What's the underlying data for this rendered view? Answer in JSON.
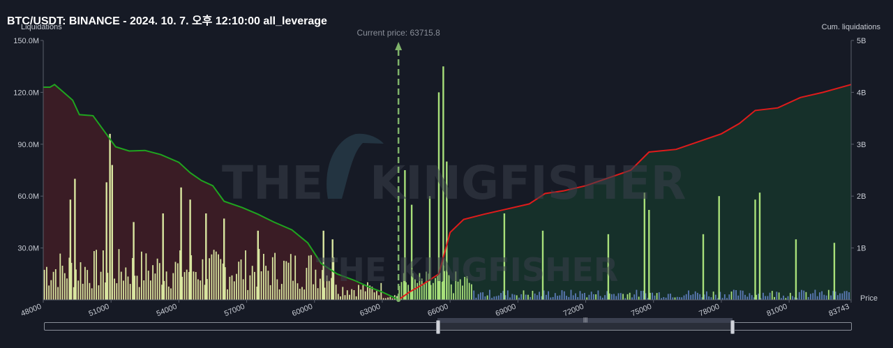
{
  "header": {
    "title": "BTC/USDT: BINANCE - 2024. 10. 7. 오후 12:10:00 all_leverage"
  },
  "chart_data": {
    "type": "bar",
    "title": "BTC/USDT: BINANCE - 2024. 10. 7. 오후 12:10:00 all_leverage",
    "ylabel": "Liquidations",
    "y2label": "Cum. liquidations",
    "xlabel": "Price",
    "xlim": [
      48000,
      83743
    ],
    "ylim": [
      0,
      150000000
    ],
    "y2lim": [
      0,
      5000000000
    ],
    "x_ticks": [
      "48000",
      "51000",
      "54000",
      "57000",
      "60000",
      "63000",
      "66000",
      "69000",
      "72000",
      "75000",
      "78000",
      "81000",
      "83743"
    ],
    "y_ticks": [
      "150.0M",
      "120.0M",
      "90.0M",
      "60.0M",
      "30.0M"
    ],
    "y2_ticks": [
      "5B",
      "4B",
      "3B",
      "2B",
      "1B"
    ],
    "current_price": 63715.8,
    "current_price_label": "Current price: 63715.8",
    "colors": {
      "short_bars": "#d9e6a0",
      "long_bars_green": "#a8e07a",
      "long_bars_blue": "#5c7bb8",
      "cum_short_line": "#1fa51f",
      "cum_long_line": "#e01b1b",
      "short_area": "#3a1c25",
      "long_area": "#16302a"
    },
    "cum_short": [
      [
        48000,
        4100000000.0
      ],
      [
        48300,
        4100000000.0
      ],
      [
        48500,
        4150000000.0
      ],
      [
        48900,
        4000000000.0
      ],
      [
        49300,
        3850000000.0
      ],
      [
        49600,
        3570000000.0
      ],
      [
        50200,
        3550000000.0
      ],
      [
        50700,
        3250000000.0
      ],
      [
        51200,
        2950000000.0
      ],
      [
        51800,
        2870000000.0
      ],
      [
        52500,
        2880000000.0
      ],
      [
        53200,
        2800000000.0
      ],
      [
        54000,
        2650000000.0
      ],
      [
        54500,
        2450000000.0
      ],
      [
        55000,
        2300000000.0
      ],
      [
        55500,
        2200000000.0
      ],
      [
        56000,
        1900000000.0
      ],
      [
        56800,
        1780000000.0
      ],
      [
        57500,
        1650000000.0
      ],
      [
        58200,
        1500000000.0
      ],
      [
        59000,
        1350000000.0
      ],
      [
        59700,
        1100000000.0
      ],
      [
        60300,
        700000000.0
      ],
      [
        61000,
        500000000.0
      ],
      [
        61800,
        370000000.0
      ],
      [
        62400,
        250000000.0
      ],
      [
        63000,
        150000000.0
      ],
      [
        63500,
        50000000.0
      ],
      [
        63715,
        0.0
      ]
    ],
    "cum_long": [
      [
        63715,
        0.0
      ],
      [
        64200,
        150000000.0
      ],
      [
        64800,
        300000000.0
      ],
      [
        65500,
        500000000.0
      ],
      [
        66000,
        1300000000.0
      ],
      [
        66600,
        1550000000.0
      ],
      [
        67500,
        1650000000.0
      ],
      [
        68500,
        1750000000.0
      ],
      [
        69500,
        1850000000.0
      ],
      [
        70200,
        2050000000.0
      ],
      [
        71000,
        2100000000.0
      ],
      [
        72000,
        2200000000.0
      ],
      [
        73000,
        2350000000.0
      ],
      [
        74000,
        2500000000.0
      ],
      [
        74800,
        2850000000.0
      ],
      [
        76000,
        2900000000.0
      ],
      [
        77000,
        3050000000.0
      ],
      [
        78000,
        3200000000.0
      ],
      [
        78800,
        3400000000.0
      ],
      [
        79500,
        3650000000.0
      ],
      [
        80500,
        3700000000.0
      ],
      [
        81500,
        3900000000.0
      ],
      [
        82500,
        4000000000.0
      ],
      [
        83743,
        4150000000.0
      ]
    ],
    "spikes": [
      [
        49200,
        58000000.0
      ],
      [
        49400,
        70000000.0
      ],
      [
        50800,
        68000000.0
      ],
      [
        50950,
        96000000.0
      ],
      [
        51050,
        78000000.0
      ],
      [
        52000,
        45000000.0
      ],
      [
        53300,
        50000000.0
      ],
      [
        54100,
        65000000.0
      ],
      [
        54500,
        58000000.0
      ],
      [
        55200,
        50000000.0
      ],
      [
        56000,
        47000000.0
      ],
      [
        57500,
        40000000.0
      ],
      [
        60400,
        40000000.0
      ],
      [
        60800,
        35000000.0
      ],
      [
        64000,
        75000000.0
      ],
      [
        64300,
        55000000.0
      ],
      [
        65100,
        60000000.0
      ],
      [
        65500,
        120000000.0
      ],
      [
        65700,
        135000000.0
      ],
      [
        65850,
        80000000.0
      ],
      [
        68400,
        50000000.0
      ],
      [
        70100,
        40000000.0
      ],
      [
        73000,
        38000000.0
      ],
      [
        74600,
        62000000.0
      ],
      [
        74800,
        52000000.0
      ],
      [
        77200,
        38000000.0
      ],
      [
        77900,
        60000000.0
      ],
      [
        79500,
        58000000.0
      ],
      [
        79700,
        62000000.0
      ],
      [
        81300,
        35000000.0
      ],
      [
        83000,
        33000000.0
      ]
    ]
  }
}
